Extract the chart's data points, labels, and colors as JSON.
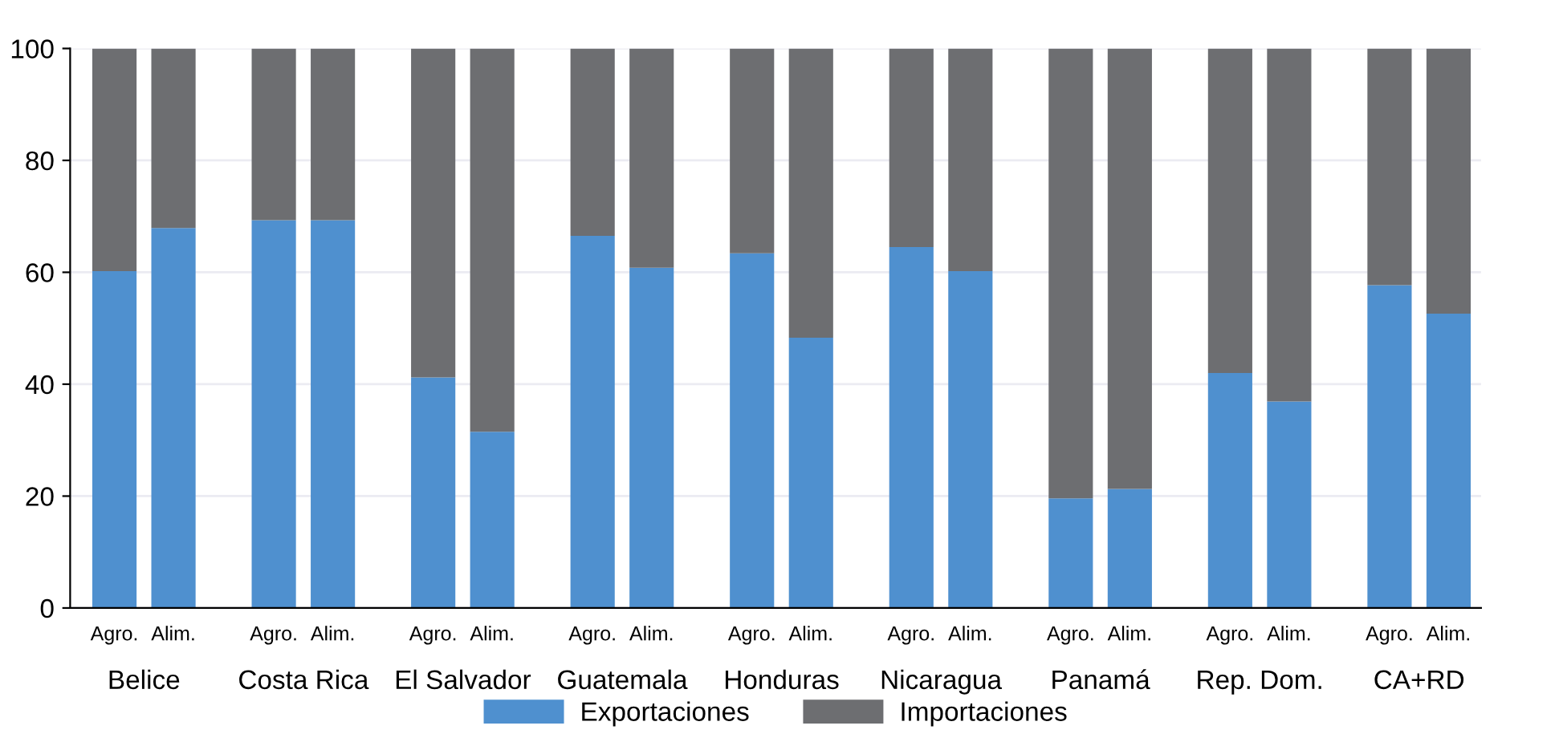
{
  "chart_data": {
    "type": "bar",
    "stacked": true,
    "categories": [
      "Agro.",
      "Alim.",
      "Agro.",
      "Alim.",
      "Agro.",
      "Alim.",
      "Agro.",
      "Alim.",
      "Agro.",
      "Alim.",
      "Agro.",
      "Alim.",
      "Agro.",
      "Alim.",
      "Agro.",
      "Alim.",
      "Agro.",
      "Alim."
    ],
    "annotations": [
      "Belice",
      "Costa Rica",
      "El Salvador",
      "Guatemala",
      "Honduras",
      "Nicaragua",
      "Panamá",
      "Rep. Dom.",
      "CA+RD"
    ],
    "series": [
      {
        "name": "Exportaciones",
        "color": "#4f90cf",
        "values": [
          60.2,
          67.9,
          69.3,
          69.3,
          41.2,
          31.5,
          66.5,
          60.8,
          63.4,
          48.3,
          64.5,
          60.2,
          19.6,
          21.3,
          42,
          36.9,
          57.7,
          52.6
        ]
      },
      {
        "name": "Importaciones",
        "color": "#6d6e71",
        "values": [
          39.8,
          32.1,
          30.7,
          30.7,
          58.8,
          68.5,
          33.5,
          39.2,
          36.6,
          51.7,
          35.5,
          39.8,
          80.4,
          78.7,
          58,
          63.1,
          42.3,
          47.4
        ]
      }
    ],
    "ylim": [
      0,
      100
    ],
    "yticks": [
      0,
      20,
      40,
      60,
      80,
      100
    ],
    "grid": "y",
    "legend": "bottom"
  }
}
